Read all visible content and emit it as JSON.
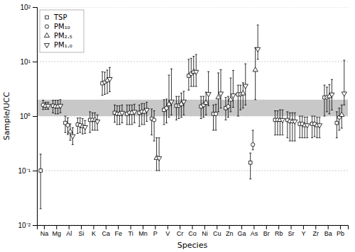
{
  "chart_data": {
    "type": "scatter",
    "xlabel": "Species",
    "ylabel": "Sample/UCC",
    "categories": [
      "Na",
      "Mg",
      "Al",
      "Si",
      "K",
      "Ca",
      "Fe",
      "Ti",
      "Mn",
      "P",
      "V",
      "Cr",
      "Co",
      "Ni",
      "Cu",
      "Zn",
      "Ga",
      "As",
      "Br",
      "Rb",
      "Sr",
      "Y",
      "Zr",
      "Ba",
      "Pb"
    ],
    "series": [
      {
        "name": "TSP",
        "color": "#000000",
        "marker": "square",
        "values": [
          0.1,
          1.55,
          0.75,
          0.7,
          0.85,
          4.0,
          1.15,
          1.1,
          1.15,
          0.9,
          1.3,
          1.55,
          5.5,
          1.5,
          1.1,
          1.4,
          2.5,
          0.14,
          null,
          0.85,
          0.85,
          0.72,
          0.72,
          2.2,
          0.75
        ],
        "errors_lo": [
          0.08,
          0.4,
          0.25,
          0.22,
          0.35,
          1.6,
          0.38,
          0.4,
          0.5,
          0.45,
          0.6,
          0.7,
          2.5,
          0.6,
          0.55,
          0.55,
          1.5,
          0.07,
          null,
          0.4,
          0.45,
          0.32,
          0.32,
          1.2,
          0.35
        ],
        "errors_hi": [
          0.1,
          0.4,
          0.25,
          0.22,
          0.35,
          2.5,
          0.45,
          0.5,
          0.45,
          0.45,
          0.7,
          0.75,
          5.5,
          0.8,
          0.5,
          0.8,
          1.2,
          0.07,
          null,
          0.4,
          0.35,
          0.28,
          0.28,
          1.5,
          0.45
        ]
      },
      {
        "name": "PM₁₀",
        "color": "#000000",
        "marker": "circle",
        "values": [
          1.6,
          1.5,
          0.68,
          0.68,
          0.85,
          4.2,
          1.1,
          1.15,
          1.2,
          0.85,
          1.4,
          1.55,
          6.0,
          1.6,
          1.1,
          1.5,
          2.5,
          0.3,
          null,
          0.85,
          0.8,
          0.72,
          0.72,
          2.2,
          0.95
        ],
        "errors_lo": [
          0.28,
          0.4,
          0.22,
          0.18,
          0.3,
          1.7,
          0.4,
          0.45,
          0.5,
          0.5,
          0.65,
          0.65,
          2.5,
          0.65,
          0.55,
          0.55,
          1.2,
          0.06,
          null,
          0.4,
          0.45,
          0.32,
          0.3,
          1.0,
          0.4
        ],
        "errors_hi": [
          0.35,
          0.45,
          0.25,
          0.25,
          0.3,
          2.2,
          0.45,
          0.45,
          0.5,
          0.4,
          0.65,
          0.75,
          5.5,
          0.7,
          0.55,
          0.8,
          1.2,
          0.25,
          null,
          0.4,
          0.35,
          0.28,
          0.28,
          1.2,
          0.45
        ]
      },
      {
        "name": "PM₂.₅",
        "color": "#000000",
        "marker": "triangle-up",
        "values": [
          1.55,
          1.5,
          0.52,
          0.65,
          0.85,
          4.5,
          1.1,
          1.15,
          1.2,
          0.17,
          1.65,
          1.65,
          6.5,
          1.75,
          2.2,
          2.0,
          2.6,
          7.0,
          null,
          0.85,
          0.8,
          0.68,
          0.68,
          2.3,
          1.05
        ],
        "errors_lo": [
          0.22,
          0.4,
          0.16,
          0.18,
          0.3,
          1.9,
          0.4,
          0.45,
          0.5,
          0.07,
          0.7,
          0.7,
          3.0,
          0.7,
          1.0,
          0.8,
          1.2,
          5.0,
          null,
          0.4,
          0.45,
          0.28,
          0.28,
          1.2,
          0.45
        ],
        "errors_hi": [
          0.25,
          0.45,
          0.2,
          0.25,
          0.3,
          2.5,
          0.45,
          0.45,
          0.5,
          0.23,
          4.0,
          1.0,
          6.0,
          1.0,
          4.0,
          3.0,
          1.5,
          11.0,
          null,
          0.45,
          0.35,
          0.28,
          0.28,
          1.5,
          0.55
        ]
      },
      {
        "name": "PM₁.₀",
        "color": "#000000",
        "marker": "triangle-down",
        "values": [
          1.55,
          1.55,
          0.43,
          0.63,
          0.8,
          4.8,
          1.15,
          1.2,
          1.3,
          0.17,
          1.85,
          1.85,
          6.5,
          2.55,
          2.6,
          2.4,
          3.6,
          17.0,
          null,
          0.85,
          0.8,
          0.68,
          0.68,
          2.5,
          2.6
        ],
        "errors_lo": [
          0.22,
          0.4,
          0.13,
          0.15,
          0.25,
          2.0,
          0.4,
          0.45,
          0.5,
          0.07,
          0.8,
          0.8,
          3.0,
          1.0,
          1.2,
          0.95,
          2.0,
          6.0,
          null,
          0.4,
          0.45,
          0.28,
          0.28,
          1.2,
          1.0
        ],
        "errors_hi": [
          0.25,
          0.45,
          0.18,
          0.2,
          0.25,
          3.0,
          0.45,
          0.45,
          0.5,
          0.23,
          5.5,
          1.0,
          7.0,
          4.0,
          4.5,
          4.5,
          5.5,
          30.0,
          null,
          0.45,
          0.35,
          0.28,
          0.28,
          2.2,
          8.0
        ]
      }
    ],
    "bands": [
      {
        "lo": 1.0,
        "hi": 2.0,
        "color": "#c8c8c8"
      }
    ],
    "log": "y",
    "ylim": [
      0.01,
      100
    ],
    "yticks": [
      {
        "value": 0.01,
        "label": "10⁻²"
      },
      {
        "value": 0.1,
        "label": "10⁻¹"
      },
      {
        "value": 1,
        "label": "10⁰"
      },
      {
        "value": 10,
        "label": "10¹"
      },
      {
        "value": 100,
        "label": "10²"
      }
    ],
    "grid": true,
    "legend": "upper left"
  }
}
